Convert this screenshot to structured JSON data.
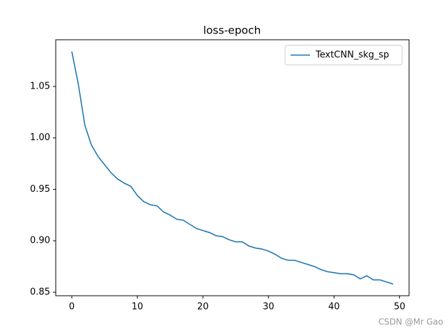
{
  "chart_data": {
    "type": "line",
    "title": "loss-epoch",
    "x": [
      0,
      1,
      2,
      3,
      4,
      5,
      6,
      7,
      8,
      9,
      10,
      11,
      12,
      13,
      14,
      15,
      16,
      17,
      18,
      19,
      20,
      21,
      22,
      23,
      24,
      25,
      26,
      27,
      28,
      29,
      30,
      31,
      32,
      33,
      34,
      35,
      36,
      37,
      38,
      39,
      40,
      41,
      42,
      43,
      44,
      45,
      46,
      47,
      48,
      49
    ],
    "series": [
      {
        "name": "TextCNN_skg_sp",
        "color": "#1f77b4",
        "values": [
          1.084,
          1.052,
          1.012,
          0.993,
          0.982,
          0.974,
          0.966,
          0.96,
          0.956,
          0.953,
          0.944,
          0.938,
          0.935,
          0.934,
          0.928,
          0.925,
          0.921,
          0.92,
          0.916,
          0.912,
          0.91,
          0.908,
          0.905,
          0.904,
          0.901,
          0.899,
          0.899,
          0.895,
          0.893,
          0.892,
          0.89,
          0.887,
          0.883,
          0.881,
          0.881,
          0.879,
          0.877,
          0.875,
          0.872,
          0.87,
          0.869,
          0.868,
          0.868,
          0.867,
          0.863,
          0.866,
          0.862,
          0.862,
          0.86,
          0.858
        ]
      }
    ],
    "xlim": [
      -2.45,
      51.45
    ],
    "ylim": [
      0.8466,
      1.0954
    ],
    "xticks": [
      0,
      10,
      20,
      30,
      40,
      50
    ],
    "yticks": [
      0.85,
      {
        "value": 0.9,
        "label": "0.90"
      },
      0.95,
      {
        "value": 1.0,
        "label": "1.00"
      },
      1.05
    ],
    "legend": "upper right",
    "grid": false
  },
  "watermark": "CSDN @Mr  Gao"
}
